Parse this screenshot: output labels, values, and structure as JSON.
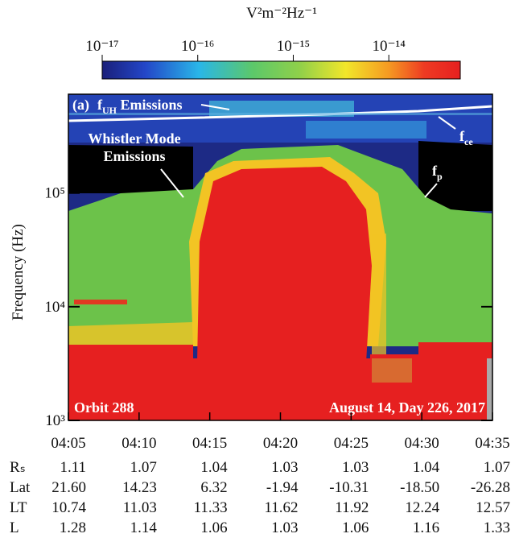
{
  "chart_data": {
    "type": "spectrogram",
    "colorbar_label": "V²m⁻²Hz⁻¹",
    "clim": [
      1e-17,
      5.6e-14
    ],
    "cticks": [
      {
        "value": 1e-17,
        "label": "10⁻¹⁷"
      },
      {
        "value": 1e-16,
        "label": "10⁻¹⁶"
      },
      {
        "value": 1e-15,
        "label": "10⁻¹⁵"
      },
      {
        "value": 1e-14,
        "label": "10⁻¹⁴"
      }
    ],
    "colorbar_log": true,
    "ylabel": "Frequency (Hz)",
    "ylog": true,
    "ylim": [
      1000,
      740000
    ],
    "yticks": [
      {
        "value": 1000,
        "label": "10³"
      },
      {
        "value": 10000,
        "label": "10⁴"
      },
      {
        "value": 100000,
        "label": "10⁵"
      }
    ],
    "xlim": [
      245,
      275
    ],
    "xticks": [
      {
        "value": 245,
        "label": "04:05"
      },
      {
        "value": 250,
        "label": "04:10"
      },
      {
        "value": 255,
        "label": "04:15"
      },
      {
        "value": 260,
        "label": "04:20"
      },
      {
        "value": 265,
        "label": "04:25"
      },
      {
        "value": 270,
        "label": "04:30"
      },
      {
        "value": 275,
        "label": "04:35"
      }
    ],
    "panel_label": "(a)",
    "fuh_label": {
      "base": "f",
      "sub": "UH",
      "suffix": " Emissions"
    },
    "whistler_label": [
      "Whistler Mode",
      "Emissions"
    ],
    "fce_label": {
      "base": "f",
      "sub": "ce"
    },
    "fp_label": {
      "base": "f",
      "sub": "p"
    },
    "orbit": "Orbit 288",
    "date": "August 14,  Day 226,  2017",
    "ephemeris": [
      {
        "label": "Rₛ",
        "values": [
          "1.11",
          "1.07",
          "1.04",
          "1.03",
          "1.03",
          "1.04",
          "1.07"
        ]
      },
      {
        "label": "Lat",
        "values": [
          "21.60",
          "14.23",
          "6.32",
          "-1.94",
          "-10.31",
          "-18.50",
          "-26.28"
        ]
      },
      {
        "label": "LT",
        "values": [
          "10.74",
          "11.03",
          "11.33",
          "11.62",
          "11.92",
          "12.24",
          "12.57"
        ]
      },
      {
        "label": "L",
        "values": [
          "1.28",
          "1.14",
          "1.06",
          "1.03",
          "1.06",
          "1.16",
          "1.33"
        ]
      }
    ]
  }
}
